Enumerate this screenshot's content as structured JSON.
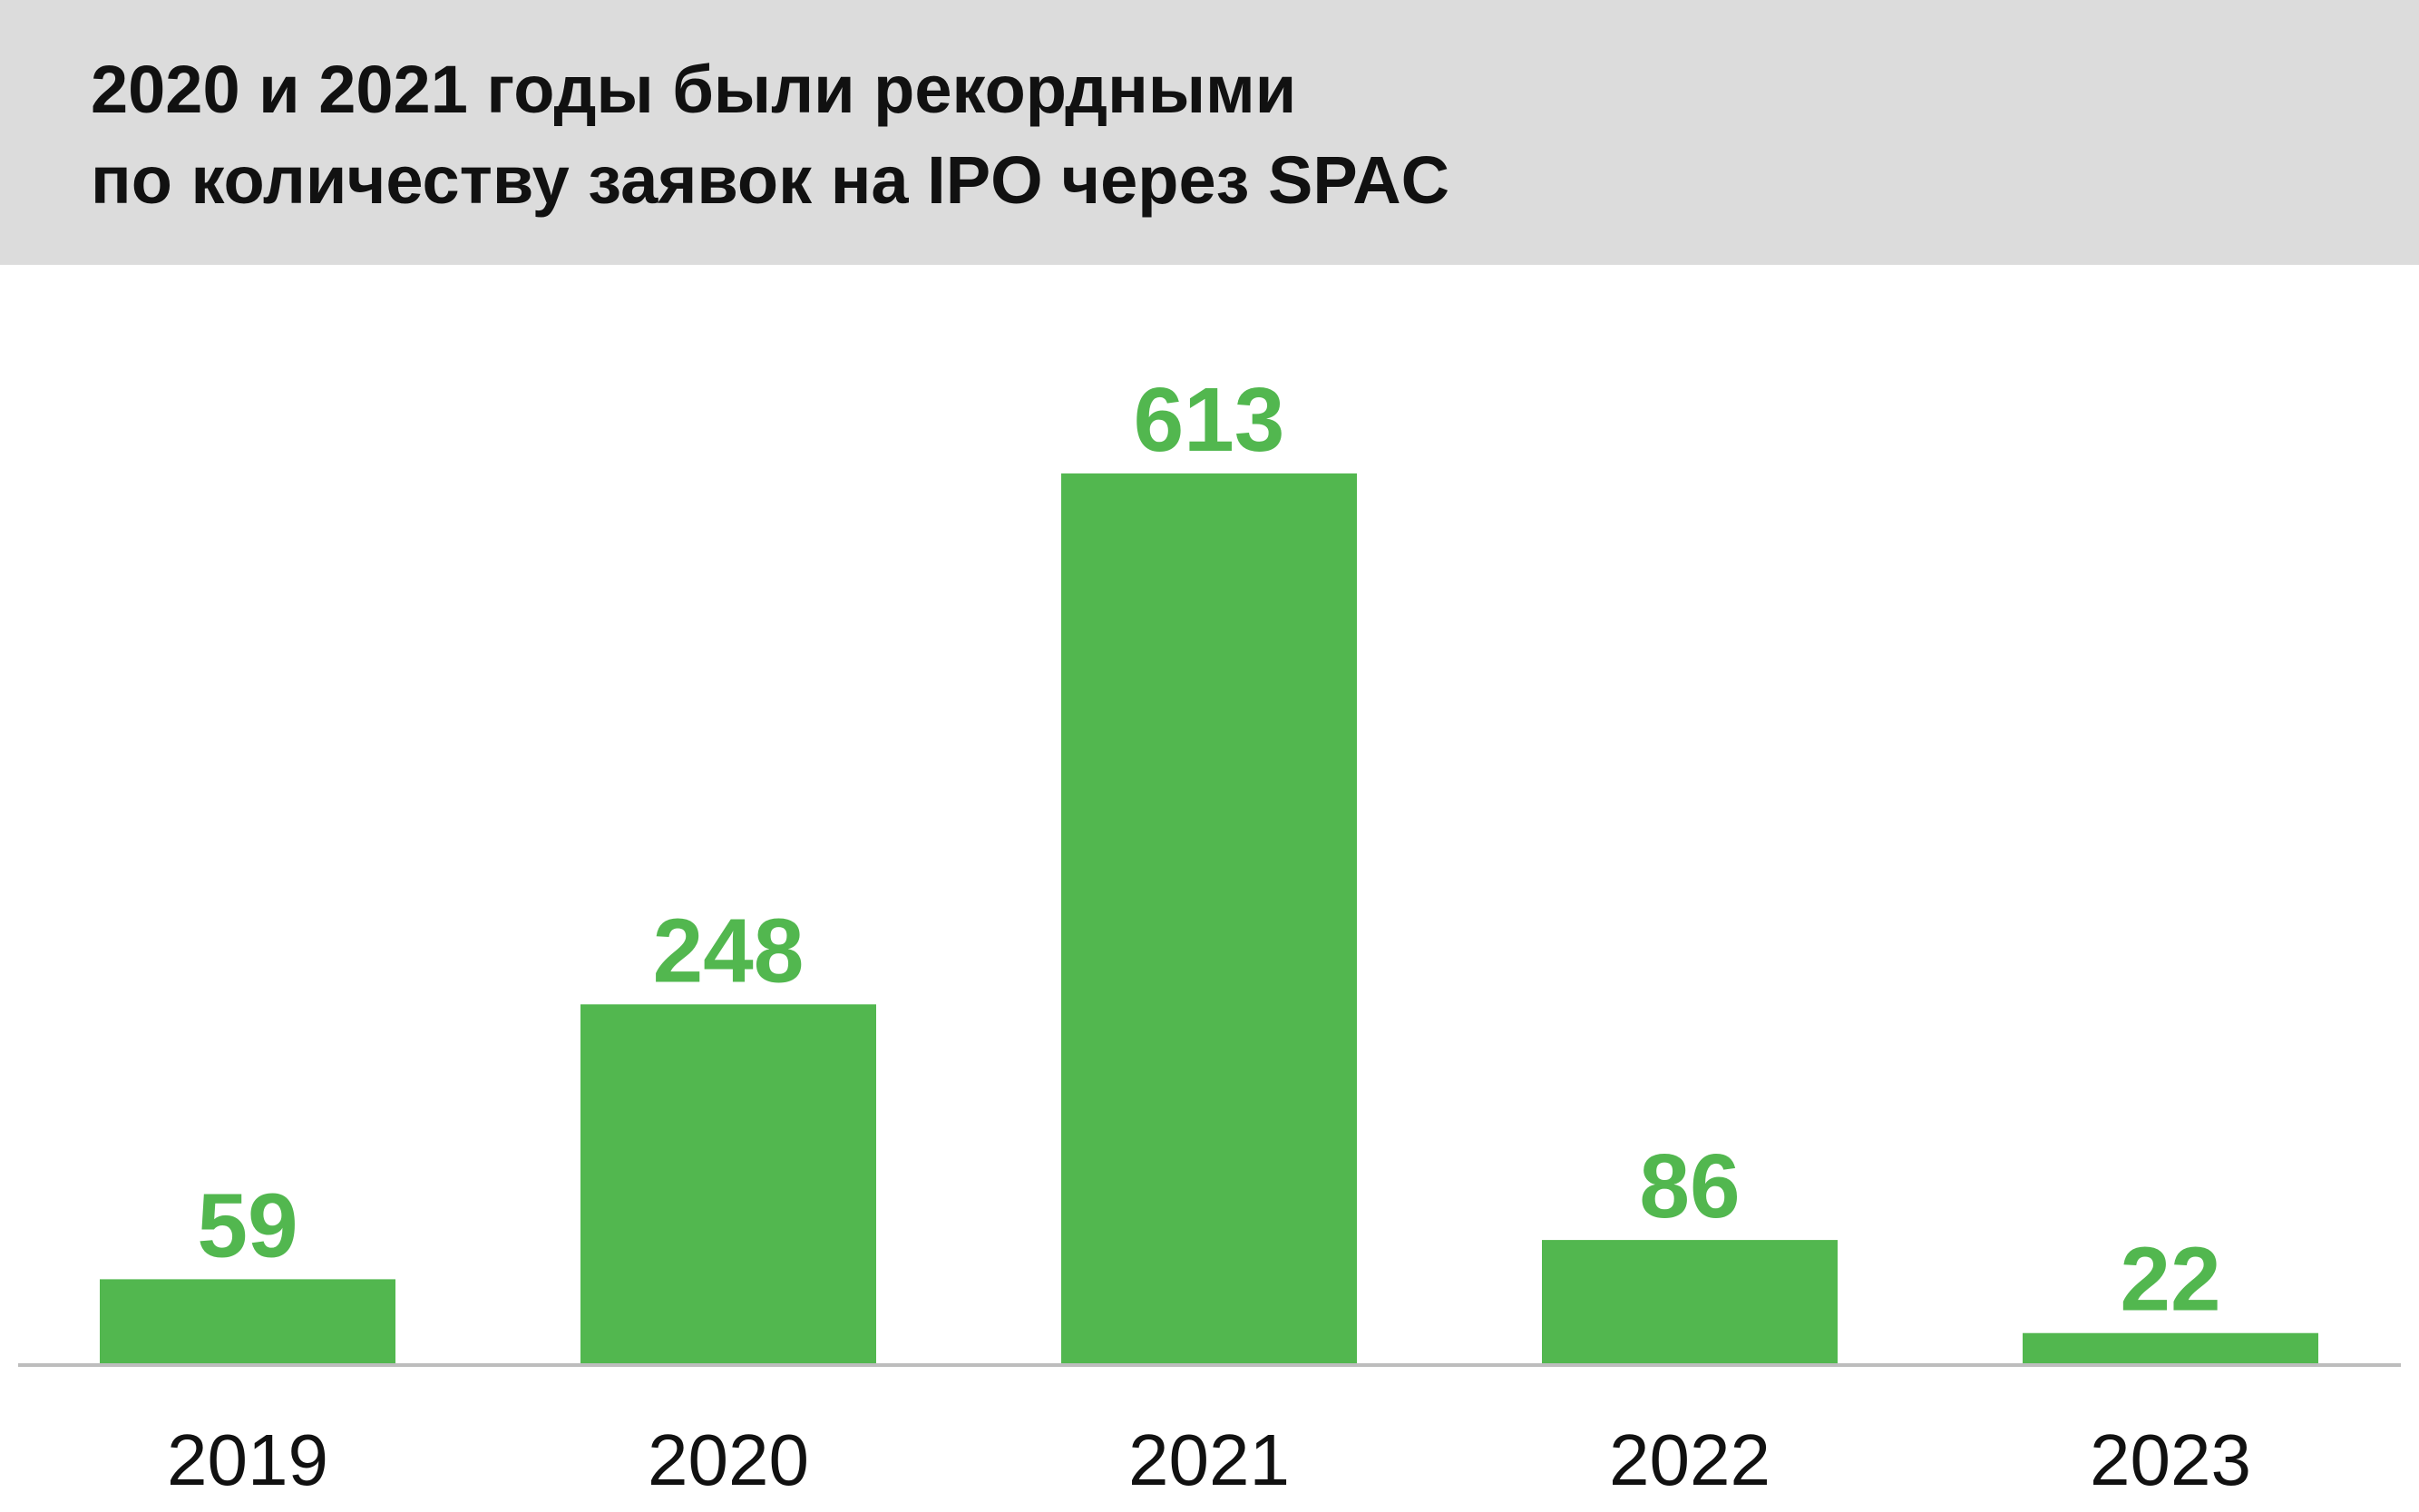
{
  "title_lines": [
    "2020 и 2021 годы были рекордными",
    "по количеству заявок на IPO через SPAC"
  ],
  "colors": {
    "bar": "#52b74f",
    "value_label": "#52b74f",
    "header_bg": "#dcdcdc",
    "axis": "#bdbdbd",
    "text": "#111111"
  },
  "chart_data": {
    "type": "bar",
    "title": "2020 и 2021 годы были рекордными по количеству заявок на IPO через SPAC",
    "categories": [
      "2019",
      "2020",
      "2021",
      "2022",
      "2023"
    ],
    "values": [
      59,
      248,
      613,
      86,
      22
    ],
    "xlabel": "",
    "ylabel": "",
    "ylim": [
      0,
      613
    ],
    "grid": false,
    "legend": "none",
    "data_labels": true
  }
}
